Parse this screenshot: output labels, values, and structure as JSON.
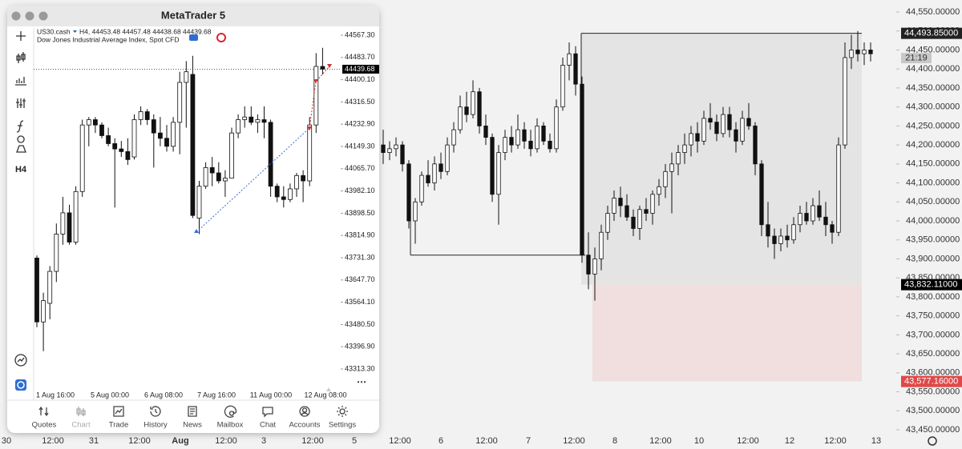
{
  "background_chart": {
    "price_ticks": [
      {
        "value": 44550,
        "label": "44,550.00000"
      },
      {
        "value": 44500,
        "label": "44,500.00000"
      },
      {
        "value": 44450,
        "label": "44,450.00000"
      },
      {
        "value": 44400,
        "label": "44,400.00000"
      },
      {
        "value": 44350,
        "label": "44,350.00000"
      },
      {
        "value": 44300,
        "label": "44,300.00000"
      },
      {
        "value": 44250,
        "label": "44,250.00000"
      },
      {
        "value": 44200,
        "label": "44,200.00000"
      },
      {
        "value": 44150,
        "label": "44,150.00000"
      },
      {
        "value": 44100,
        "label": "44,100.00000"
      },
      {
        "value": 44050,
        "label": "44,050.00000"
      },
      {
        "value": 44000,
        "label": "44,000.00000"
      },
      {
        "value": 43950,
        "label": "43,950.00000"
      },
      {
        "value": 43900,
        "label": "43,900.00000"
      },
      {
        "value": 43850,
        "label": "43,850.00000"
      },
      {
        "value": 43800,
        "label": "43,800.00000"
      },
      {
        "value": 43750,
        "label": "43,750.00000"
      },
      {
        "value": 43700,
        "label": "43,700.00000"
      },
      {
        "value": 43650,
        "label": "43,650.00000"
      },
      {
        "value": 43600,
        "label": "43,600.00000"
      },
      {
        "value": 43550,
        "label": "43,550.00000"
      },
      {
        "value": 43500,
        "label": "43,500.00000"
      },
      {
        "value": 43450,
        "label": "43,450.00000"
      }
    ],
    "ylim": [
      43450,
      44550
    ],
    "time_labels": [
      "30",
      "12:00",
      "31",
      "12:00",
      "Aug",
      "12:00",
      "3",
      "12:00",
      "5",
      "12:00",
      "6",
      "12:00",
      "7",
      "12:00",
      "8",
      "12:00",
      "10",
      "12:00",
      "12",
      "12:00",
      "13"
    ],
    "zone_top": {
      "value": 44493.85,
      "label": "44,493.85000"
    },
    "zone_mid": {
      "value": 43832.11,
      "label": "43,832.11000"
    },
    "zone_bottom": {
      "value": 43577.16,
      "label": "43,577.16000"
    },
    "range_line": 43910,
    "countdown": "21:19",
    "candles": [
      [
        44200,
        44240,
        44150,
        44180
      ],
      [
        44180,
        44210,
        44160,
        44190
      ],
      [
        44190,
        44220,
        44170,
        44200
      ],
      [
        44200,
        44210,
        44130,
        44150
      ],
      [
        44150,
        44160,
        43980,
        44000
      ],
      [
        44000,
        44060,
        43940,
        44050
      ],
      [
        44050,
        44130,
        44040,
        44120
      ],
      [
        44120,
        44160,
        44090,
        44100
      ],
      [
        44100,
        44170,
        44080,
        44150
      ],
      [
        44150,
        44180,
        44110,
        44130
      ],
      [
        44130,
        44220,
        44120,
        44200
      ],
      [
        44200,
        44260,
        44180,
        44240
      ],
      [
        44240,
        44330,
        44230,
        44300
      ],
      [
        44300,
        44340,
        44260,
        44280
      ],
      [
        44280,
        44370,
        44270,
        44340
      ],
      [
        44340,
        44350,
        44230,
        44250
      ],
      [
        44250,
        44280,
        44200,
        44220
      ],
      [
        44220,
        44230,
        44050,
        44070
      ],
      [
        44070,
        44200,
        43990,
        44180
      ],
      [
        44180,
        44240,
        44160,
        44220
      ],
      [
        44220,
        44250,
        44180,
        44200
      ],
      [
        44200,
        44280,
        44190,
        44240
      ],
      [
        44240,
        44260,
        44190,
        44210
      ],
      [
        44210,
        44240,
        44170,
        44190
      ],
      [
        44190,
        44270,
        44180,
        44250
      ],
      [
        44250,
        44260,
        44200,
        44210
      ],
      [
        44210,
        44230,
        44180,
        44190
      ],
      [
        44190,
        44320,
        44180,
        44300
      ],
      [
        44300,
        44430,
        44290,
        44410
      ],
      [
        44410,
        44470,
        44370,
        44440
      ],
      [
        44440,
        44460,
        44330,
        44360
      ],
      [
        44360,
        44380,
        43890,
        43910
      ],
      [
        43910,
        43970,
        43820,
        43860
      ],
      [
        43860,
        43930,
        43790,
        43900
      ],
      [
        43900,
        43990,
        43870,
        43970
      ],
      [
        43970,
        44040,
        43950,
        44020
      ],
      [
        44020,
        44080,
        44000,
        44060
      ],
      [
        44060,
        44090,
        44010,
        44040
      ],
      [
        44040,
        44070,
        44000,
        44010
      ],
      [
        44010,
        44030,
        43960,
        43980
      ],
      [
        43980,
        44040,
        43950,
        44030
      ],
      [
        44030,
        44060,
        44000,
        44020
      ],
      [
        44020,
        44080,
        43990,
        44070
      ],
      [
        44070,
        44110,
        44040,
        44090
      ],
      [
        44090,
        44150,
        44060,
        44130
      ],
      [
        44130,
        44180,
        44020,
        44150
      ],
      [
        44150,
        44200,
        44120,
        44180
      ],
      [
        44180,
        44230,
        44150,
        44200
      ],
      [
        44200,
        44250,
        44170,
        44230
      ],
      [
        44230,
        44260,
        44180,
        44210
      ],
      [
        44210,
        44290,
        44200,
        44270
      ],
      [
        44270,
        44310,
        44240,
        44260
      ],
      [
        44260,
        44280,
        44210,
        44230
      ],
      [
        44230,
        44300,
        44220,
        44280
      ],
      [
        44280,
        44300,
        44220,
        44240
      ],
      [
        44240,
        44260,
        44180,
        44210
      ],
      [
        44210,
        44290,
        44200,
        44270
      ],
      [
        44270,
        44310,
        44240,
        44250
      ],
      [
        44250,
        44260,
        44120,
        44150
      ],
      [
        44150,
        44160,
        43960,
        43990
      ],
      [
        43990,
        44050,
        43930,
        43960
      ],
      [
        43960,
        43980,
        43900,
        43940
      ],
      [
        43940,
        43980,
        43920,
        43960
      ],
      [
        43960,
        43990,
        43930,
        43950
      ],
      [
        43950,
        44010,
        43940,
        43990
      ],
      [
        43990,
        44040,
        43970,
        44020
      ],
      [
        44020,
        44050,
        43990,
        44000
      ],
      [
        44000,
        44060,
        43990,
        44040
      ],
      [
        44040,
        44080,
        44000,
        44010
      ],
      [
        44010,
        44050,
        43960,
        43990
      ],
      [
        43990,
        44000,
        43940,
        43970
      ],
      [
        43970,
        44220,
        43960,
        44200
      ],
      [
        44200,
        44470,
        44190,
        44430
      ],
      [
        44430,
        44490,
        44400,
        44450
      ],
      [
        44450,
        44500,
        44420,
        44440
      ],
      [
        44440,
        44470,
        44410,
        44450
      ],
      [
        44450,
        44470,
        44420,
        44440
      ]
    ]
  },
  "window": {
    "title": "MetaTrader 5",
    "symbol": "US30.cash",
    "quote_line": "H4, 44453.48 44457.48 44438.68 44439.68",
    "description": "Dow Jones Industrial Average Index, Spot CFD",
    "side_label": "H4",
    "price_ticks": [
      {
        "value": 44567.3,
        "label": "44567.30"
      },
      {
        "value": 44483.7,
        "label": "44483.70"
      },
      {
        "value": 44400.1,
        "label": "44400.10"
      },
      {
        "value": 44316.5,
        "label": "44316.50"
      },
      {
        "value": 44232.9,
        "label": "44232.90"
      },
      {
        "value": 44149.3,
        "label": "44149.30"
      },
      {
        "value": 44065.7,
        "label": "44065.70"
      },
      {
        "value": 43982.1,
        "label": "43982.10"
      },
      {
        "value": 43898.5,
        "label": "43898.50"
      },
      {
        "value": 43814.9,
        "label": "43814.90"
      },
      {
        "value": 43731.3,
        "label": "43731.30"
      },
      {
        "value": 43647.7,
        "label": "43647.70"
      },
      {
        "value": 43564.1,
        "label": "43564.10"
      },
      {
        "value": 43480.5,
        "label": "43480.50"
      },
      {
        "value": 43396.9,
        "label": "43396.90"
      },
      {
        "value": 43313.3,
        "label": "43313.30"
      }
    ],
    "current_price": {
      "value": 44439.68,
      "label": "44439.68"
    },
    "time_labels": [
      "1 Aug 16:00",
      "5 Aug 00:00",
      "6 Aug 08:00",
      "7 Aug 16:00",
      "11 Aug 00:00",
      "12 Aug 08:00"
    ],
    "tabs": [
      "Quotes",
      "Chart",
      "Trade",
      "History",
      "News",
      "Mailbox",
      "Chat",
      "Accounts",
      "Settings"
    ],
    "candles": [
      [
        43730,
        43740,
        43470,
        43490
      ],
      [
        43490,
        43600,
        43380,
        43570
      ],
      [
        43560,
        43700,
        43500,
        43680
      ],
      [
        43680,
        43860,
        43640,
        43820
      ],
      [
        43820,
        43960,
        43780,
        43900
      ],
      [
        43900,
        43930,
        43780,
        43790
      ],
      [
        43790,
        44000,
        43780,
        43980
      ],
      [
        43980,
        44250,
        43960,
        44230
      ],
      [
        44230,
        44260,
        44150,
        44250
      ],
      [
        44250,
        44260,
        44200,
        44230
      ],
      [
        44230,
        44240,
        44180,
        44190
      ],
      [
        44190,
        44220,
        44150,
        44160
      ],
      [
        44160,
        44180,
        43920,
        44140
      ],
      [
        44140,
        44170,
        44110,
        44130
      ],
      [
        44130,
        44180,
        44080,
        44100
      ],
      [
        44110,
        44270,
        44100,
        44250
      ],
      [
        44250,
        44300,
        44230,
        44280
      ],
      [
        44280,
        44290,
        44230,
        44250
      ],
      [
        44250,
        44270,
        44070,
        44200
      ],
      [
        44200,
        44260,
        44150,
        44180
      ],
      [
        44180,
        44230,
        44130,
        44150
      ],
      [
        44150,
        44260,
        44130,
        44240
      ],
      [
        44240,
        44430,
        44120,
        44390
      ],
      [
        44390,
        44470,
        44220,
        44430
      ],
      [
        44420,
        44490,
        43880,
        43890
      ],
      [
        43880,
        44020,
        43820,
        44000
      ],
      [
        44000,
        44090,
        43990,
        44070
      ],
      [
        44070,
        44110,
        44000,
        44050
      ],
      [
        44050,
        44090,
        44010,
        44020
      ],
      [
        44020,
        44060,
        43960,
        44030
      ],
      [
        44030,
        44220,
        44030,
        44200
      ],
      [
        44200,
        44270,
        44180,
        44250
      ],
      [
        44250,
        44300,
        44220,
        44260
      ],
      [
        44260,
        44300,
        44230,
        44240
      ],
      [
        44240,
        44270,
        44200,
        44250
      ],
      [
        44250,
        44300,
        44180,
        44240
      ],
      [
        44240,
        44250,
        43960,
        44000
      ],
      [
        44000,
        44010,
        43940,
        43960
      ],
      [
        43960,
        44000,
        43920,
        43950
      ],
      [
        43950,
        44010,
        43940,
        43990
      ],
      [
        43990,
        44050,
        43960,
        44040
      ],
      [
        44040,
        44060,
        43940,
        44020
      ],
      [
        44020,
        44260,
        44000,
        44230
      ],
      [
        44230,
        44500,
        44200,
        44450
      ],
      [
        44450,
        44520,
        44420,
        44440
      ]
    ]
  }
}
